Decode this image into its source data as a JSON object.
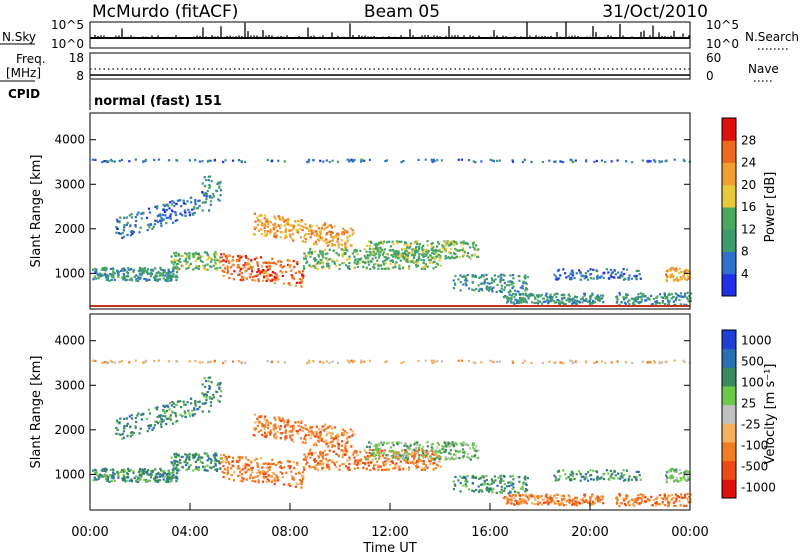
{
  "header": {
    "station": "McMurdo (fitACF)",
    "beam": "Beam 05",
    "date": "31/Oct/2010"
  },
  "sky_panel": {
    "left_label": "N.Sky",
    "right_label": "N.Search",
    "tick_top": "10^5",
    "tick_bottom": "10^0",
    "right_tick_top": "10^5",
    "right_tick_bottom": "10^0"
  },
  "freq_panel": {
    "left_label_line1": "Freq.",
    "left_label_line2": "[MHz]",
    "right_label": "Nave",
    "left_tick_top": "18",
    "left_tick_bottom": "8",
    "right_tick_top": "60",
    "right_tick_bottom": "0"
  },
  "cpid": {
    "label": "CPID",
    "mode": "normal (fast) 151"
  },
  "colors": {
    "power_scale": [
      "#1f2fe6",
      "#2f6fd0",
      "#3b9a6e",
      "#4aa860",
      "#e8c93a",
      "#f0a030",
      "#ee6a1e",
      "#e01010"
    ],
    "velocity_scale": [
      "#e01010",
      "#ee4a14",
      "#f07d20",
      "#f5b060",
      "#c0c0c0",
      "#6cc84a",
      "#3a8a5e",
      "#2a6fb0",
      "#1f3fd6"
    ]
  },
  "chart_data": [
    {
      "type": "heatmap",
      "panel": "power",
      "ylabel": "Slant Range [km]",
      "x_ticks": [
        "00:00",
        "04:00",
        "08:00",
        "12:00",
        "16:00",
        "20:00",
        "00:00"
      ],
      "y_ticks": [
        "1000",
        "2000",
        "3000",
        "4000"
      ],
      "ylim": [
        200,
        4600
      ],
      "colorbar": {
        "label": "Power [dB]",
        "ticks": [
          "4",
          "8",
          "12",
          "16",
          "20",
          "24",
          "28"
        ],
        "range": [
          0,
          32
        ]
      }
    },
    {
      "type": "heatmap",
      "panel": "velocity",
      "xlabel": "Time UT",
      "ylabel": "Slant Range [km]",
      "x_ticks": [
        "00:00",
        "04:00",
        "08:00",
        "12:00",
        "16:00",
        "20:00",
        "00:00"
      ],
      "y_ticks": [
        "1000",
        "2000",
        "3000",
        "4000"
      ],
      "ylim": [
        200,
        4600
      ],
      "colorbar": {
        "label": "Velocity [m s⁻¹]",
        "ticks": [
          "1000",
          "500",
          "100",
          "25",
          "-25",
          "-100",
          "-500",
          "-1000"
        ]
      }
    }
  ]
}
